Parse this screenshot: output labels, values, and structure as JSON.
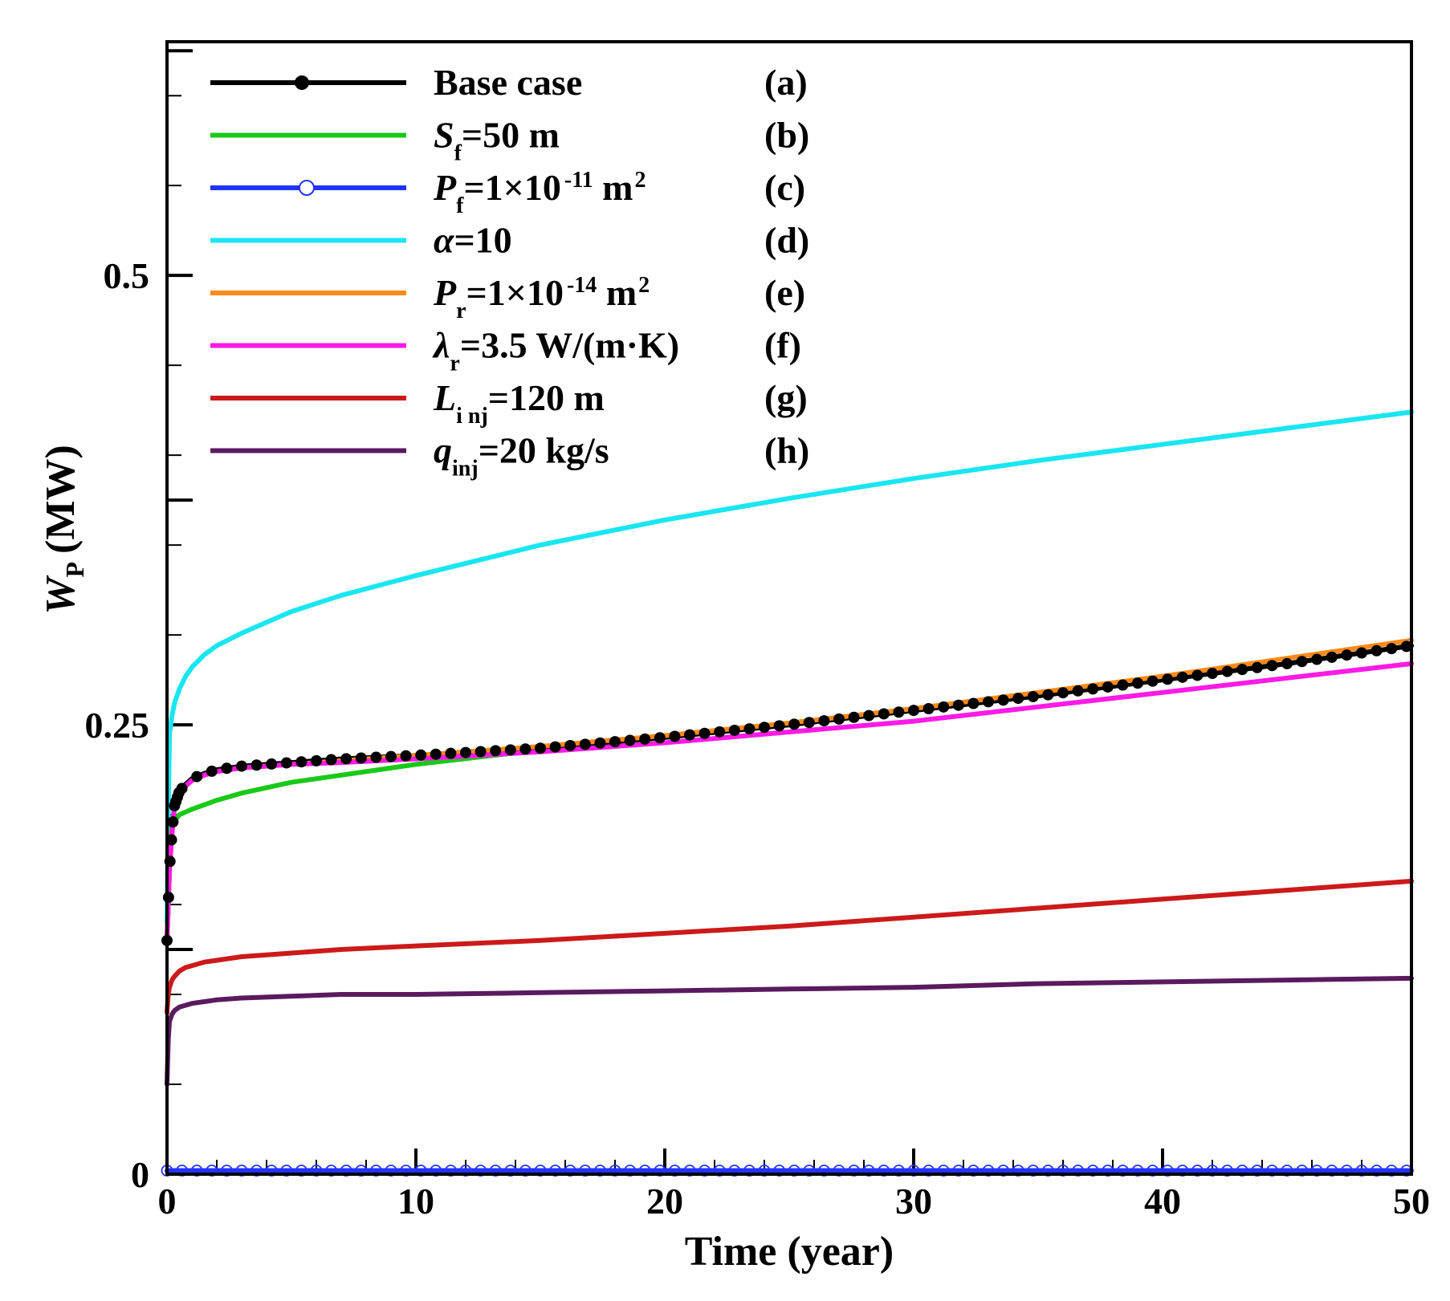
{
  "chart_data": {
    "type": "line",
    "xlabel": "Time (year)",
    "ylabel": {
      "main": "W",
      "sub": "P",
      "unit": "(MW)"
    },
    "xlim": [
      0,
      50
    ],
    "ylim": [
      0,
      0.63
    ],
    "xticks": [
      0,
      10,
      20,
      30,
      40,
      50
    ],
    "xtick_labels": [
      "0",
      "10",
      "20",
      "30",
      "40",
      "50"
    ],
    "yticks": [
      0,
      0.25,
      0.5
    ],
    "ytick_labels": [
      "0",
      "0.25",
      "0.5"
    ],
    "legend_position": "top-left",
    "series": [
      {
        "id": "a",
        "tag": "(a)",
        "color": "#000000",
        "marker": "filled-circle",
        "label": {
          "main": "Base case"
        },
        "x": [
          0,
          0.05,
          0.1,
          0.2,
          0.3,
          0.5,
          0.75,
          1,
          1.5,
          2,
          3,
          4,
          5,
          7,
          10,
          15,
          20,
          25,
          30,
          35,
          40,
          45,
          50
        ],
        "y": [
          0.13,
          0.15,
          0.17,
          0.19,
          0.205,
          0.213,
          0.217,
          0.22,
          0.223,
          0.225,
          0.227,
          0.228,
          0.229,
          0.231,
          0.233,
          0.237,
          0.243,
          0.25,
          0.258,
          0.266,
          0.275,
          0.284,
          0.294
        ]
      },
      {
        "id": "b",
        "tag": "(b)",
        "color": "#19c919",
        "marker": "none",
        "label": {
          "main": "S",
          "sub": "f",
          "rest": "=50 m"
        },
        "x": [
          0,
          0.1,
          0.2,
          0.5,
          1,
          2,
          3,
          5,
          7,
          10,
          15,
          20,
          25,
          30,
          35,
          40,
          45,
          50
        ],
        "y": [
          0.13,
          0.175,
          0.195,
          0.2,
          0.203,
          0.208,
          0.212,
          0.218,
          0.222,
          0.228,
          0.236,
          0.243,
          0.25,
          0.258,
          0.266,
          0.275,
          0.284,
          0.294
        ]
      },
      {
        "id": "c",
        "tag": "(c)",
        "color": "#2233ff",
        "marker": "open-circle",
        "label": {
          "main": "P",
          "sub": "f",
          "rest": "=1×10",
          "sup": "-11",
          "tail": " m",
          "sup2": "2"
        },
        "x": [
          0,
          50
        ],
        "y": [
          0.002,
          0.002
        ]
      },
      {
        "id": "d",
        "tag": "(d)",
        "color": "#19e6f0",
        "marker": "none",
        "label": {
          "main": "α",
          "rest": "=10"
        },
        "x": [
          0,
          0.05,
          0.1,
          0.2,
          0.3,
          0.5,
          0.75,
          1,
          1.5,
          2,
          3,
          4,
          5,
          7,
          10,
          15,
          20,
          25,
          30,
          35,
          40,
          45,
          50
        ],
        "y": [
          0.14,
          0.2,
          0.245,
          0.255,
          0.262,
          0.27,
          0.277,
          0.282,
          0.289,
          0.294,
          0.301,
          0.307,
          0.313,
          0.322,
          0.333,
          0.35,
          0.364,
          0.376,
          0.387,
          0.397,
          0.406,
          0.415,
          0.424
        ]
      },
      {
        "id": "e",
        "tag": "(e)",
        "color": "#ff8a1a",
        "marker": "none",
        "label": {
          "main": "P",
          "sub": "r",
          "rest": "=1×10",
          "sup": "-14",
          "tail": " m",
          "sup2": "2"
        },
        "x": [
          0,
          0.05,
          0.1,
          0.2,
          0.3,
          0.5,
          0.75,
          1,
          1.5,
          2,
          3,
          5,
          7,
          10,
          15,
          20,
          25,
          30,
          35,
          40,
          45,
          50
        ],
        "y": [
          0.13,
          0.15,
          0.17,
          0.19,
          0.205,
          0.212,
          0.216,
          0.219,
          0.222,
          0.224,
          0.226,
          0.228,
          0.23,
          0.233,
          0.238,
          0.244,
          0.251,
          0.259,
          0.268,
          0.277,
          0.287,
          0.297
        ]
      },
      {
        "id": "f",
        "tag": "(f)",
        "color": "#ff1ae6",
        "marker": "none",
        "label": {
          "main": "λ",
          "sub": "r",
          "rest": "=3.5 W/(m·K)"
        },
        "x": [
          0,
          0.05,
          0.1,
          0.2,
          0.3,
          0.5,
          0.75,
          1,
          1.5,
          2,
          3,
          5,
          7,
          10,
          15,
          20,
          25,
          30,
          35,
          40,
          45,
          50
        ],
        "y": [
          0.13,
          0.15,
          0.17,
          0.19,
          0.205,
          0.212,
          0.216,
          0.219,
          0.222,
          0.224,
          0.226,
          0.228,
          0.229,
          0.231,
          0.235,
          0.24,
          0.246,
          0.252,
          0.26,
          0.268,
          0.276,
          0.284
        ]
      },
      {
        "id": "g",
        "tag": "(g)",
        "color": "#cc1a1a",
        "marker": "none",
        "label": {
          "main": "L",
          "sub": "i nj",
          "rest": "=120 m"
        },
        "x": [
          0,
          0.05,
          0.1,
          0.2,
          0.3,
          0.5,
          0.75,
          1,
          1.5,
          2,
          3,
          5,
          7,
          10,
          15,
          20,
          25,
          30,
          35,
          40,
          45,
          50
        ],
        "y": [
          0.09,
          0.1,
          0.104,
          0.108,
          0.11,
          0.113,
          0.115,
          0.116,
          0.118,
          0.119,
          0.121,
          0.123,
          0.125,
          0.127,
          0.13,
          0.134,
          0.138,
          0.143,
          0.148,
          0.153,
          0.158,
          0.163
        ]
      },
      {
        "id": "h",
        "tag": "(h)",
        "color": "#5a1a5f",
        "marker": "none",
        "label": {
          "main": "q",
          "sub": "inj",
          "rest": "=20 kg/s"
        },
        "x": [
          0,
          0.05,
          0.1,
          0.2,
          0.3,
          0.5,
          0.75,
          1,
          1.5,
          2,
          3,
          5,
          7,
          10,
          15,
          20,
          25,
          30,
          35,
          40,
          45,
          50
        ],
        "y": [
          0.05,
          0.075,
          0.085,
          0.089,
          0.091,
          0.093,
          0.094,
          0.095,
          0.096,
          0.097,
          0.098,
          0.099,
          0.1,
          0.1,
          0.101,
          0.102,
          0.103,
          0.104,
          0.106,
          0.107,
          0.108,
          0.109
        ]
      }
    ]
  }
}
